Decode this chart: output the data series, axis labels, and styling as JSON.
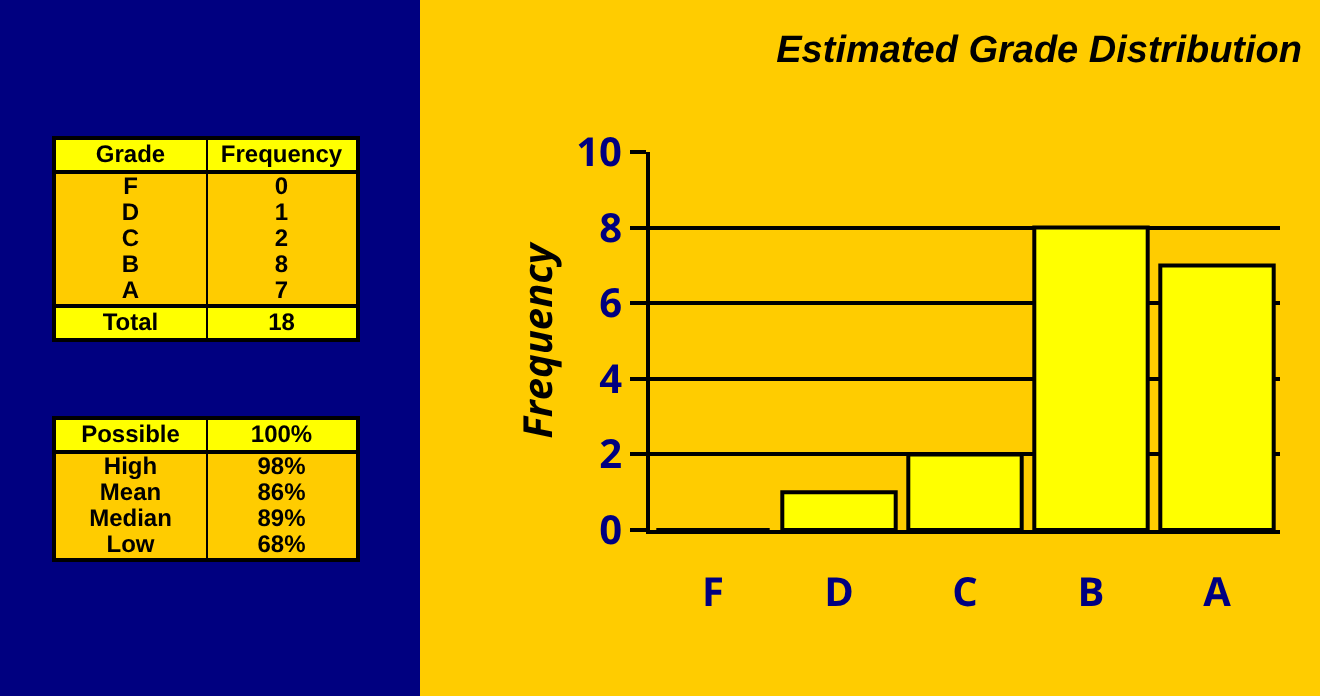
{
  "chart_data": [
    {
      "type": "other",
      "annotations": [
        "Grade",
        "Frequency",
        "F",
        "0",
        "D",
        "1",
        "C",
        "2",
        "B",
        "8",
        "A",
        "7",
        "Total",
        "18"
      ]
    },
    {
      "type": "other",
      "annotations": [
        "Possible",
        "100%",
        "High",
        "98%",
        "Mean",
        "86%",
        "Median",
        "89%",
        "Low",
        "68%"
      ]
    },
    {
      "type": "bar",
      "title": "Estimated Grade Distribution",
      "ylabel": "Frequency",
      "categories": [
        "F",
        "D",
        "C",
        "B",
        "A"
      ],
      "values": [
        0,
        1,
        2,
        8,
        7
      ],
      "color": "#ffff00",
      "ylim": [
        0,
        10
      ],
      "yticks": [
        0,
        2,
        4,
        6,
        8,
        10
      ],
      "grid": "y"
    }
  ]
}
